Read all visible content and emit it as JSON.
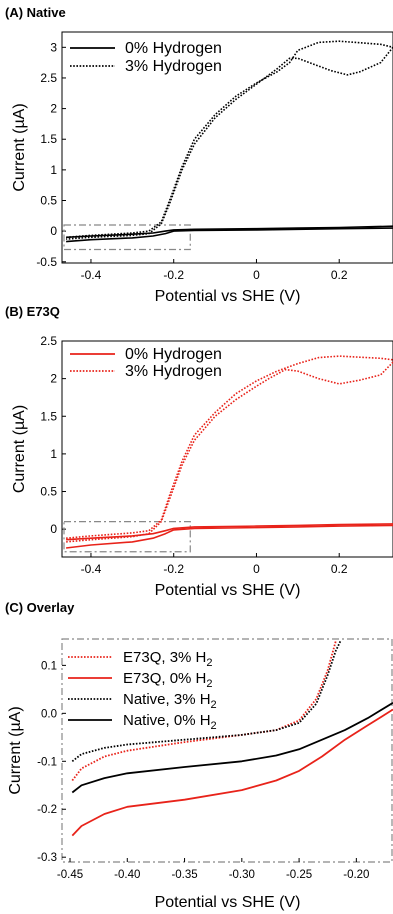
{
  "chart_data": [
    {
      "type": "line",
      "panel_title": "(A) Native",
      "xlabel": "Potential vs SHE (V)",
      "ylabel": "Current (µA)",
      "xlim": [
        -0.47,
        0.33
      ],
      "ylim": [
        -0.52,
        3.25
      ],
      "x_ticks": [
        "-0.4",
        "-0.2",
        "0",
        "0.2"
      ],
      "y_ticks": [
        "-0.5",
        "0",
        "0.5",
        "1",
        "1.5",
        "2",
        "2.5",
        "3"
      ],
      "legend_position": "top-left",
      "colors": {
        "series": "#000000"
      },
      "series": [
        {
          "name": "0% Hydrogen",
          "style": "solid",
          "forward": {
            "x": [
              -0.46,
              -0.4,
              -0.3,
              -0.25,
              -0.22,
              -0.2,
              -0.15,
              0,
              0.1,
              0.2,
              0.33
            ],
            "y": [
              -0.1,
              -0.08,
              -0.05,
              -0.03,
              0.0,
              0.02,
              0.03,
              0.04,
              0.05,
              0.06,
              0.08
            ]
          },
          "reverse": {
            "x": [
              0.33,
              0.2,
              0.1,
              0,
              -0.15,
              -0.2,
              -0.22,
              -0.25,
              -0.3,
              -0.4,
              -0.46
            ],
            "y": [
              0.05,
              0.04,
              0.03,
              0.02,
              0.01,
              0.0,
              -0.04,
              -0.08,
              -0.11,
              -0.14,
              -0.17
            ]
          }
        },
        {
          "name": "3% Hydrogen",
          "style": "dotted",
          "forward": {
            "x": [
              -0.46,
              -0.4,
              -0.3,
              -0.26,
              -0.23,
              -0.21,
              -0.18,
              -0.15,
              -0.1,
              -0.05,
              0,
              0.05,
              0.08,
              0.1,
              0.15,
              0.2,
              0.3,
              0.33
            ],
            "y": [
              -0.1,
              -0.07,
              -0.03,
              0.0,
              0.15,
              0.5,
              1.05,
              1.5,
              1.9,
              2.2,
              2.42,
              2.6,
              2.75,
              2.95,
              3.08,
              3.1,
              3.05,
              3.0
            ]
          },
          "reverse": {
            "x": [
              0.33,
              0.3,
              0.25,
              0.22,
              0.18,
              0.14,
              0.1,
              0.08,
              0.05,
              0,
              -0.05,
              -0.1,
              -0.15,
              -0.18,
              -0.21,
              -0.23,
              -0.26,
              -0.3,
              -0.4,
              -0.46
            ],
            "y": [
              3.0,
              2.75,
              2.6,
              2.55,
              2.62,
              2.72,
              2.82,
              2.82,
              2.65,
              2.4,
              2.15,
              1.85,
              1.42,
              1.0,
              0.45,
              0.12,
              -0.04,
              -0.07,
              -0.1,
              -0.13
            ]
          }
        }
      ],
      "inset_box": {
        "x": [
          -0.47,
          -0.16
        ],
        "y": [
          -0.3,
          0.1
        ]
      }
    },
    {
      "type": "line",
      "panel_title": "(B) E73Q",
      "xlabel": "Potential vs SHE (V)",
      "ylabel": "Current (µA)",
      "xlim": [
        -0.47,
        0.33
      ],
      "ylim": [
        -0.37,
        2.5
      ],
      "x_ticks": [
        "-0.4",
        "-0.2",
        "0",
        "0.2"
      ],
      "y_ticks": [
        "0",
        "0.5",
        "1",
        "1.5",
        "2",
        "2.5"
      ],
      "legend_position": "top-left",
      "colors": {
        "series": "#e8231a"
      },
      "series": [
        {
          "name": "0% Hydrogen",
          "style": "solid",
          "forward": {
            "x": [
              -0.46,
              -0.4,
              -0.3,
              -0.25,
              -0.22,
              -0.2,
              -0.15,
              0,
              0.1,
              0.2,
              0.33
            ],
            "y": [
              -0.14,
              -0.12,
              -0.09,
              -0.06,
              -0.02,
              0.01,
              0.03,
              0.04,
              0.05,
              0.06,
              0.07
            ]
          },
          "reverse": {
            "x": [
              0.33,
              0.2,
              0.1,
              0,
              -0.15,
              -0.2,
              -0.22,
              -0.25,
              -0.3,
              -0.4,
              -0.46
            ],
            "y": [
              0.05,
              0.04,
              0.03,
              0.02,
              0.01,
              -0.01,
              -0.06,
              -0.12,
              -0.17,
              -0.21,
              -0.25
            ]
          }
        },
        {
          "name": "3% Hydrogen",
          "style": "dotted",
          "forward": {
            "x": [
              -0.46,
              -0.4,
              -0.3,
              -0.26,
              -0.23,
              -0.21,
              -0.18,
              -0.15,
              -0.1,
              -0.05,
              0,
              0.05,
              0.1,
              0.15,
              0.2,
              0.3,
              0.33
            ],
            "y": [
              -0.12,
              -0.09,
              -0.05,
              -0.02,
              0.12,
              0.45,
              0.9,
              1.25,
              1.55,
              1.8,
              1.97,
              2.1,
              2.2,
              2.28,
              2.3,
              2.27,
              2.25
            ]
          },
          "reverse": {
            "x": [
              0.33,
              0.3,
              0.25,
              0.2,
              0.15,
              0.1,
              0.07,
              0.03,
              0,
              -0.05,
              -0.1,
              -0.15,
              -0.18,
              -0.21,
              -0.23,
              -0.26,
              -0.3,
              -0.4,
              -0.46
            ],
            "y": [
              2.22,
              2.05,
              1.98,
              1.93,
              2.0,
              2.1,
              2.12,
              2.0,
              1.9,
              1.72,
              1.5,
              1.18,
              0.85,
              0.4,
              0.1,
              -0.06,
              -0.1,
              -0.14,
              -0.17
            ]
          }
        }
      ],
      "inset_box": {
        "x": [
          -0.47,
          -0.16
        ],
        "y": [
          -0.3,
          0.1
        ]
      }
    },
    {
      "type": "line",
      "panel_title": "(C) Overlay",
      "xlabel": "Potential vs SHE (V)",
      "ylabel": "Current (µA)",
      "xlim": [
        -0.457,
        -0.168
      ],
      "ylim": [
        -0.31,
        0.155
      ],
      "x_ticks": [
        "-0.45",
        "-0.40",
        "-0.35",
        "-0.30",
        "-0.25",
        "-0.20"
      ],
      "y_ticks": [
        "-0.3",
        "-0.2",
        "-0.1",
        "0.0",
        "0.1"
      ],
      "legend_position": "top-left",
      "legend": [
        {
          "text": "E73Q, 3% H",
          "sub": "2",
          "color": "#e8231a",
          "style": "dotted"
        },
        {
          "text": "E73Q, 0% H",
          "sub": "2",
          "color": "#e8231a",
          "style": "solid"
        },
        {
          "text": "Native, 3% H",
          "sub": "2",
          "color": "#000000",
          "style": "dotted"
        },
        {
          "text": "Native, 0% H",
          "sub": "2",
          "color": "#000000",
          "style": "solid"
        }
      ],
      "series": [
        {
          "name": "E73Q, 3% H2",
          "color": "#e8231a",
          "style": "dotted",
          "x": [
            -0.448,
            -0.44,
            -0.42,
            -0.4,
            -0.35,
            -0.3,
            -0.27,
            -0.25,
            -0.235,
            -0.225,
            -0.218
          ],
          "y": [
            -0.14,
            -0.115,
            -0.09,
            -0.078,
            -0.06,
            -0.045,
            -0.035,
            -0.015,
            0.03,
            0.09,
            0.15
          ]
        },
        {
          "name": "E73Q, 0% H2",
          "color": "#e8231a",
          "style": "solid",
          "x": [
            -0.448,
            -0.44,
            -0.42,
            -0.4,
            -0.35,
            -0.3,
            -0.27,
            -0.25,
            -0.23,
            -0.21,
            -0.19,
            -0.168
          ],
          "y": [
            -0.255,
            -0.235,
            -0.21,
            -0.195,
            -0.18,
            -0.16,
            -0.14,
            -0.12,
            -0.09,
            -0.055,
            -0.025,
            0.008
          ]
        },
        {
          "name": "Native, 3% H2",
          "color": "#000000",
          "style": "dotted",
          "x": [
            -0.448,
            -0.44,
            -0.42,
            -0.4,
            -0.35,
            -0.3,
            -0.27,
            -0.25,
            -0.235,
            -0.225,
            -0.218,
            -0.214
          ],
          "y": [
            -0.1,
            -0.085,
            -0.072,
            -0.065,
            -0.055,
            -0.045,
            -0.035,
            -0.02,
            0.02,
            0.08,
            0.13,
            0.15
          ]
        },
        {
          "name": "Native, 0% H2",
          "color": "#000000",
          "style": "solid",
          "x": [
            -0.448,
            -0.44,
            -0.42,
            -0.4,
            -0.35,
            -0.3,
            -0.27,
            -0.25,
            -0.23,
            -0.21,
            -0.19,
            -0.168
          ],
          "y": [
            -0.165,
            -0.15,
            -0.135,
            -0.125,
            -0.112,
            -0.1,
            -0.088,
            -0.075,
            -0.055,
            -0.035,
            -0.01,
            0.022
          ]
        }
      ]
    }
  ]
}
